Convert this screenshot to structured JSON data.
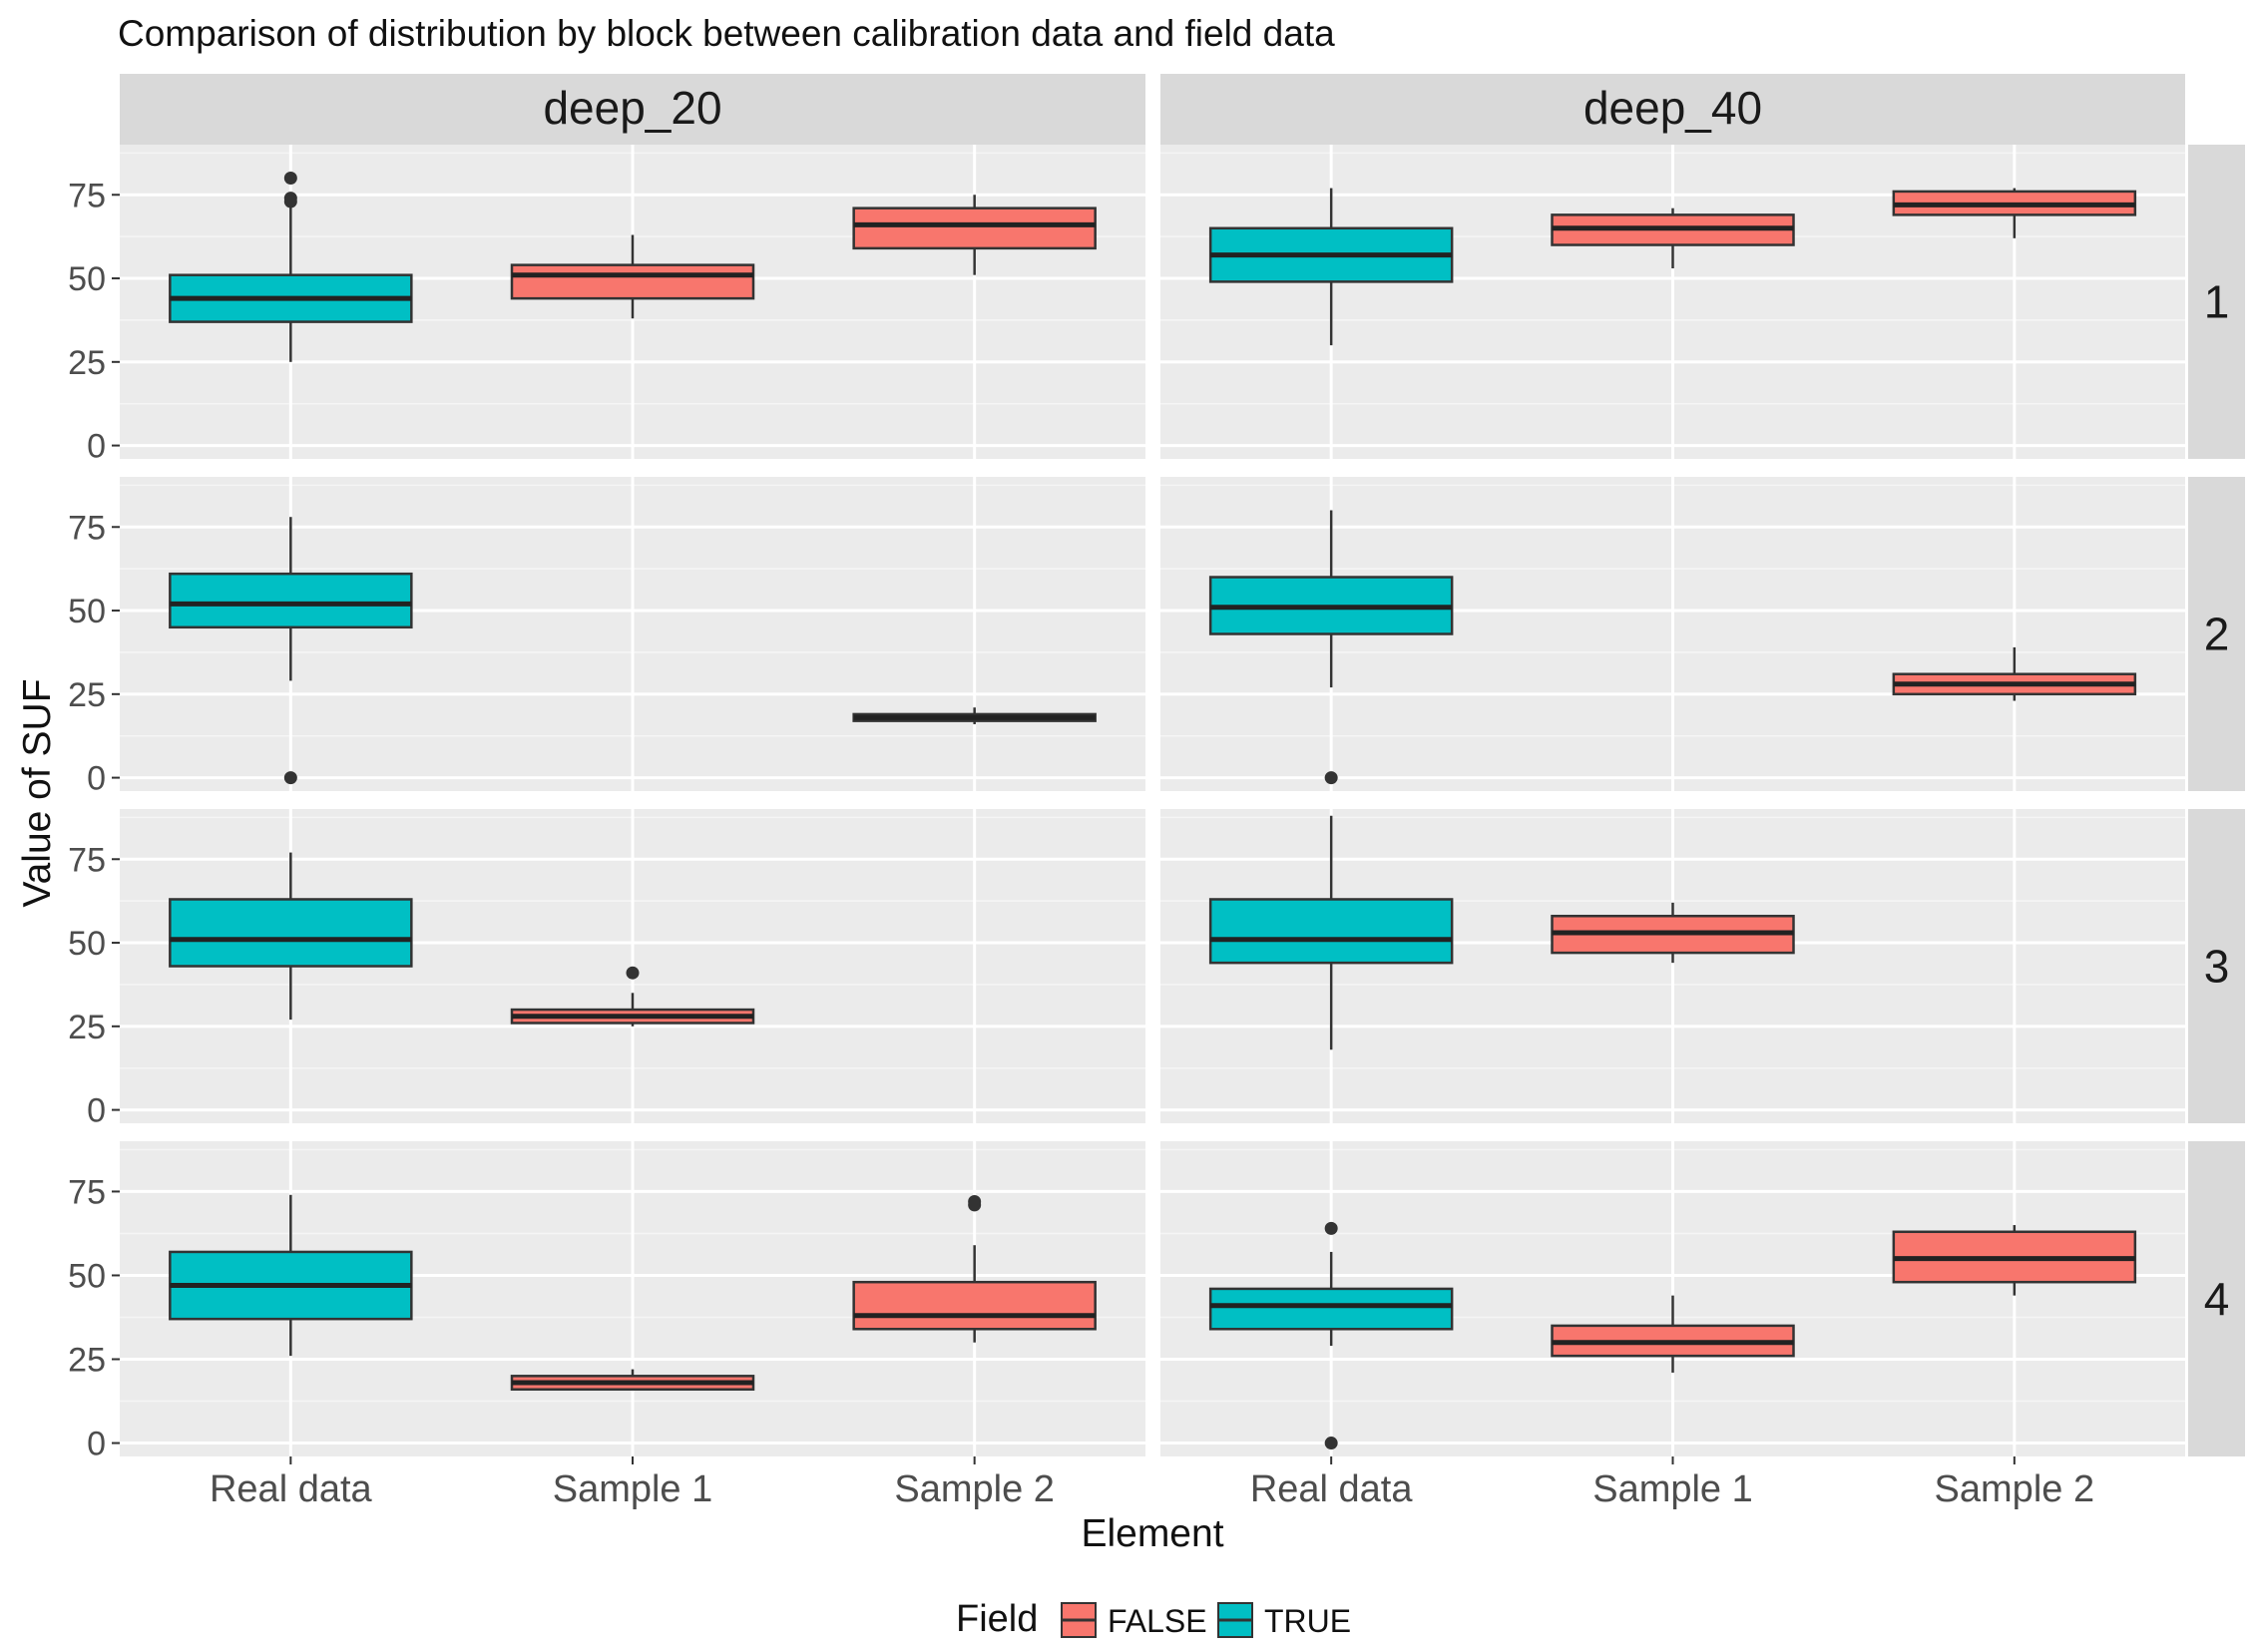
{
  "chart_data": {
    "type": "boxplot",
    "title": "Comparison of distribution by block between calibration data and field data",
    "xlabel": "Element",
    "ylabel": "Value of SUF",
    "categories": [
      "Real data",
      "Sample 1",
      "Sample 2"
    ],
    "columns": [
      "deep_20",
      "deep_40"
    ],
    "rows": [
      "1",
      "2",
      "3",
      "4"
    ],
    "ylim": [
      -4,
      90
    ],
    "yticks": [
      0,
      25,
      50,
      75
    ],
    "legend": {
      "title": "Field",
      "position": "bottom",
      "entries": [
        {
          "label": "FALSE",
          "color": "#F8766D"
        },
        {
          "label": "TRUE",
          "color": "#00BFC4"
        }
      ]
    },
    "colors": {
      "FALSE": "#F8766D",
      "TRUE": "#00BFC4"
    },
    "panels": [
      {
        "column": "deep_20",
        "row": "1",
        "boxes": [
          {
            "category": "Real data",
            "field": "TRUE",
            "min": 25,
            "q1": 37,
            "median": 44,
            "q3": 51,
            "max": 72,
            "outliers": [
              80,
              74,
              73
            ]
          },
          {
            "category": "Sample 1",
            "field": "FALSE",
            "min": 38,
            "q1": 44,
            "median": 51,
            "q3": 54,
            "max": 63,
            "outliers": []
          },
          {
            "category": "Sample 2",
            "field": "FALSE",
            "min": 51,
            "q1": 59,
            "median": 66,
            "q3": 71,
            "max": 75,
            "outliers": []
          }
        ]
      },
      {
        "column": "deep_40",
        "row": "1",
        "boxes": [
          {
            "category": "Real data",
            "field": "TRUE",
            "min": 30,
            "q1": 49,
            "median": 57,
            "q3": 65,
            "max": 77,
            "outliers": []
          },
          {
            "category": "Sample 1",
            "field": "FALSE",
            "min": 53,
            "q1": 60,
            "median": 65,
            "q3": 69,
            "max": 71,
            "outliers": []
          },
          {
            "category": "Sample 2",
            "field": "FALSE",
            "min": 62,
            "q1": 69,
            "median": 72,
            "q3": 76,
            "max": 77,
            "outliers": []
          }
        ]
      },
      {
        "column": "deep_20",
        "row": "2",
        "boxes": [
          {
            "category": "Real data",
            "field": "TRUE",
            "min": 29,
            "q1": 45,
            "median": 52,
            "q3": 61,
            "max": 78,
            "outliers": [
              0
            ]
          },
          {
            "category": "Sample 2",
            "field": "FALSE",
            "min": 16,
            "q1": 17,
            "median": 18,
            "q3": 19,
            "max": 21,
            "outliers": []
          }
        ]
      },
      {
        "column": "deep_40",
        "row": "2",
        "boxes": [
          {
            "category": "Real data",
            "field": "TRUE",
            "min": 27,
            "q1": 43,
            "median": 51,
            "q3": 60,
            "max": 80,
            "outliers": [
              0
            ]
          },
          {
            "category": "Sample 2",
            "field": "FALSE",
            "min": 23,
            "q1": 25,
            "median": 28,
            "q3": 31,
            "max": 39,
            "outliers": []
          }
        ]
      },
      {
        "column": "deep_20",
        "row": "3",
        "boxes": [
          {
            "category": "Real data",
            "field": "TRUE",
            "min": 27,
            "q1": 43,
            "median": 51,
            "q3": 63,
            "max": 77,
            "outliers": []
          },
          {
            "category": "Sample 1",
            "field": "FALSE",
            "min": 25,
            "q1": 26,
            "median": 28,
            "q3": 30,
            "max": 35,
            "outliers": [
              41
            ]
          }
        ]
      },
      {
        "column": "deep_40",
        "row": "3",
        "boxes": [
          {
            "category": "Real data",
            "field": "TRUE",
            "min": 18,
            "q1": 44,
            "median": 51,
            "q3": 63,
            "max": 88,
            "outliers": []
          },
          {
            "category": "Sample 1",
            "field": "FALSE",
            "min": 44,
            "q1": 47,
            "median": 53,
            "q3": 58,
            "max": 62,
            "outliers": []
          }
        ]
      },
      {
        "column": "deep_20",
        "row": "4",
        "boxes": [
          {
            "category": "Real data",
            "field": "TRUE",
            "min": 26,
            "q1": 37,
            "median": 47,
            "q3": 57,
            "max": 74,
            "outliers": []
          },
          {
            "category": "Sample 1",
            "field": "FALSE",
            "min": 16,
            "q1": 16,
            "median": 18,
            "q3": 20,
            "max": 22,
            "outliers": []
          },
          {
            "category": "Sample 2",
            "field": "FALSE",
            "min": 30,
            "q1": 34,
            "median": 38,
            "q3": 48,
            "max": 59,
            "outliers": [
              72,
              71
            ]
          }
        ]
      },
      {
        "column": "deep_40",
        "row": "4",
        "boxes": [
          {
            "category": "Real data",
            "field": "TRUE",
            "min": 29,
            "q1": 34,
            "median": 41,
            "q3": 46,
            "max": 57,
            "outliers": [
              64,
              0
            ]
          },
          {
            "category": "Sample 1",
            "field": "FALSE",
            "min": 21,
            "q1": 26,
            "median": 30,
            "q3": 35,
            "max": 44,
            "outliers": []
          },
          {
            "category": "Sample 2",
            "field": "FALSE",
            "min": 44,
            "q1": 48,
            "median": 55,
            "q3": 63,
            "max": 65,
            "outliers": []
          }
        ]
      }
    ]
  }
}
